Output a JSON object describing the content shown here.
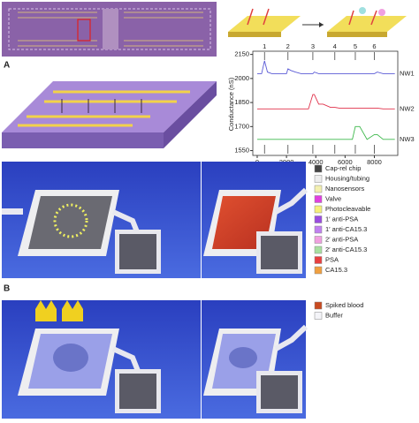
{
  "panel_labels": [
    "A",
    "B"
  ],
  "chart_data": {
    "type": "line",
    "y_label": "Conductance (nS)",
    "x": [
      0,
      300,
      500,
      700,
      1000,
      1500,
      2000,
      2100,
      2300,
      2600,
      3000,
      3500,
      3800,
      3900,
      4200,
      4500,
      5000,
      5300,
      5600,
      6000,
      6500,
      6700,
      7000,
      7500,
      8000,
      8200,
      8600,
      9000,
      9400
    ],
    "series": [
      {
        "name": "NW1",
        "color": "#5b5bd6",
        "values": [
          2030,
          2030,
          2110,
          2040,
          2030,
          2030,
          2030,
          2060,
          2050,
          2040,
          2030,
          2030,
          2030,
          2040,
          2030,
          2030,
          2030,
          2030,
          2030,
          2030,
          2030,
          2030,
          2030,
          2030,
          2030,
          2040,
          2030,
          2030,
          2030
        ]
      },
      {
        "name": "NW2",
        "color": "#e0304a",
        "values": [
          1810,
          1810,
          1810,
          1810,
          1810,
          1810,
          1810,
          1810,
          1810,
          1810,
          1810,
          1810,
          1900,
          1900,
          1840,
          1840,
          1820,
          1820,
          1815,
          1815,
          1815,
          1815,
          1815,
          1815,
          1815,
          1815,
          1810,
          1810,
          1810
        ]
      },
      {
        "name": "NW3",
        "color": "#3cb84a",
        "values": [
          1620,
          1620,
          1620,
          1620,
          1620,
          1620,
          1620,
          1620,
          1620,
          1620,
          1620,
          1620,
          1620,
          1620,
          1620,
          1620,
          1620,
          1620,
          1620,
          1620,
          1620,
          1700,
          1700,
          1620,
          1650,
          1650,
          1620,
          1620,
          1620
        ]
      }
    ],
    "annotations": [
      {
        "text": "1",
        "x": 500
      },
      {
        "text": "2",
        "x": 2100
      },
      {
        "text": "3",
        "x": 3800
      },
      {
        "text": "4",
        "x": 5300
      },
      {
        "text": "5",
        "x": 6700
      },
      {
        "text": "6",
        "x": 8000
      }
    ],
    "xlim": [
      -300,
      9600
    ],
    "ylim": [
      1520,
      2170
    ],
    "xticks": [
      0,
      2000,
      4000,
      6000,
      8000
    ],
    "yticks": [
      1550,
      1700,
      1850,
      2000,
      2150
    ]
  },
  "legend": {
    "items": [
      {
        "label": "Cap-rel chip",
        "color": "#444444"
      },
      {
        "label": "Housing/tubing",
        "color": "#eeeeee"
      },
      {
        "label": "Nanosensors",
        "color": "#f3f0b0"
      },
      {
        "label": "Valve",
        "color": "#e040e0"
      },
      {
        "label": "Photocleavable",
        "color": "#f5f07a"
      },
      {
        "label": "1′ anti-PSA",
        "color": "#9a4de0"
      },
      {
        "label": "1′ anti-CA15.3",
        "color": "#c080f0"
      },
      {
        "label": "2′ anti-PSA",
        "color": "#f0a0e0"
      },
      {
        "label": "2′ anti-CA15.3",
        "color": "#a8e0a0"
      },
      {
        "label": "PSA",
        "color": "#e84040"
      },
      {
        "label": "CA15.3",
        "color": "#f0a040"
      }
    ]
  },
  "legend2": {
    "items": [
      {
        "label": "Spiked blood",
        "color": "#c84a20"
      },
      {
        "label": "Buffer",
        "color": "#f4f4f8"
      }
    ]
  }
}
